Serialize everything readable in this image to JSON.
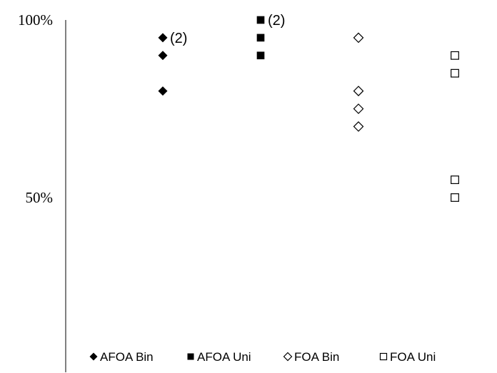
{
  "chart_data": {
    "type": "scatter",
    "title": "",
    "xlabel": "",
    "ylabel": "",
    "ylim": [
      0,
      100
    ],
    "y_ticks": [
      {
        "value": 100,
        "label": "100%"
      },
      {
        "value": 50,
        "label": "50%"
      }
    ],
    "legend_position": "bottom",
    "grid": false,
    "series": [
      {
        "name": "AFOA Bin",
        "marker": "diamond-filled",
        "color": "#000000",
        "x": [
          1,
          1,
          1
        ],
        "values": [
          95,
          90,
          80
        ],
        "annotations": [
          {
            "index": 0,
            "text": "(2)"
          }
        ]
      },
      {
        "name": "AFOA Uni",
        "marker": "square-filled",
        "color": "#000000",
        "x": [
          2,
          2,
          2
        ],
        "values": [
          100,
          95,
          90
        ],
        "annotations": [
          {
            "index": 0,
            "text": "(2)"
          }
        ]
      },
      {
        "name": "FOA Bin",
        "marker": "diamond-open",
        "color": "#000000",
        "x": [
          3,
          3,
          3,
          3
        ],
        "values": [
          95,
          80,
          75,
          70
        ],
        "annotations": []
      },
      {
        "name": "FOA Uni",
        "marker": "square-open",
        "color": "#000000",
        "x": [
          4,
          4,
          4,
          4
        ],
        "values": [
          90,
          85,
          55,
          50
        ],
        "annotations": []
      }
    ]
  }
}
